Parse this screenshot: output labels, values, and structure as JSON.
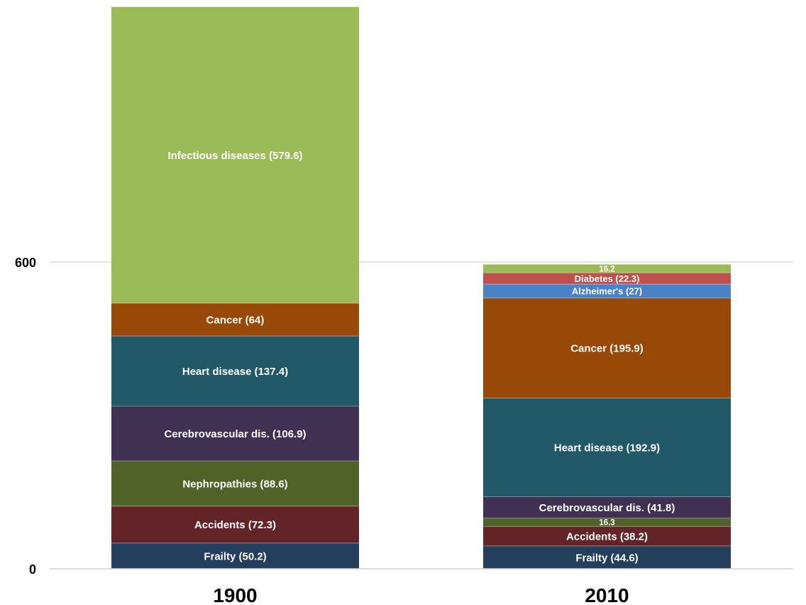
{
  "chart_data": {
    "type": "bar",
    "stacked": true,
    "categories": [
      "1900",
      "2010"
    ],
    "yticks": [
      0,
      600
    ],
    "ylim": [
      0,
      1100
    ],
    "grid": true,
    "bars": [
      {
        "category": "1900",
        "segments": [
          {
            "value": 50.2,
            "label": "Frailty (50.2)",
            "color": "#243e5e"
          },
          {
            "value": 72.3,
            "label": "Accidents (72.3)",
            "color": "#632427"
          },
          {
            "value": 88.6,
            "label": "Nephropathies (88.6)",
            "color": "#4f6228"
          },
          {
            "value": 106.9,
            "label": "Cerebrovascular dis. (106.9)",
            "color": "#403152"
          },
          {
            "value": 137.4,
            "label": "Heart disease (137.4)",
            "color": "#215968"
          },
          {
            "value": 64,
            "label": "Cancer (64)",
            "color": "#984807"
          },
          {
            "value": 579.6,
            "label": "Infectious diseases (579.6)",
            "color": "#9bbb59"
          }
        ]
      },
      {
        "category": "2010",
        "segments": [
          {
            "value": 44.6,
            "label": "Frailty (44.6)",
            "color": "#243e5e"
          },
          {
            "value": 38.2,
            "label": "Accidents (38.2)",
            "color": "#632427"
          },
          {
            "value": 16.3,
            "label": "16.3",
            "color": "#4f6228"
          },
          {
            "value": 41.8,
            "label": "Cerebrovascular dis. (41.8)",
            "color": "#403152"
          },
          {
            "value": 192.9,
            "label": "Heart disease (192.9)",
            "color": "#215968"
          },
          {
            "value": 195.9,
            "label": "Cancer (195.9)",
            "color": "#984807"
          },
          {
            "value": 27,
            "label": "Alzheimer's (27)",
            "color": "#4a82c8"
          },
          {
            "value": 22.3,
            "label": "Diabetes (22.3)",
            "color": "#c0504d"
          },
          {
            "value": 16.2,
            "label": "16.2",
            "color": "#9bbb59"
          }
        ]
      }
    ]
  }
}
